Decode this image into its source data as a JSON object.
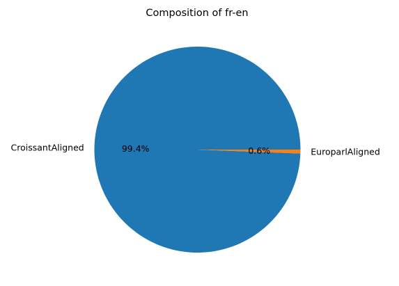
{
  "chart_data": {
    "type": "pie",
    "title": "Composition of fr-en",
    "slices": [
      {
        "label": "CroissantAligned",
        "value": 99.4,
        "pct_label": "99.4%",
        "color": "#1f77b4"
      },
      {
        "label": "EuroparlAligned",
        "value": 0.6,
        "pct_label": "0.6%",
        "color": "#ff7f0e"
      }
    ],
    "start_angle_deg": 0,
    "direction": "counterclockwise",
    "legend": "none"
  }
}
